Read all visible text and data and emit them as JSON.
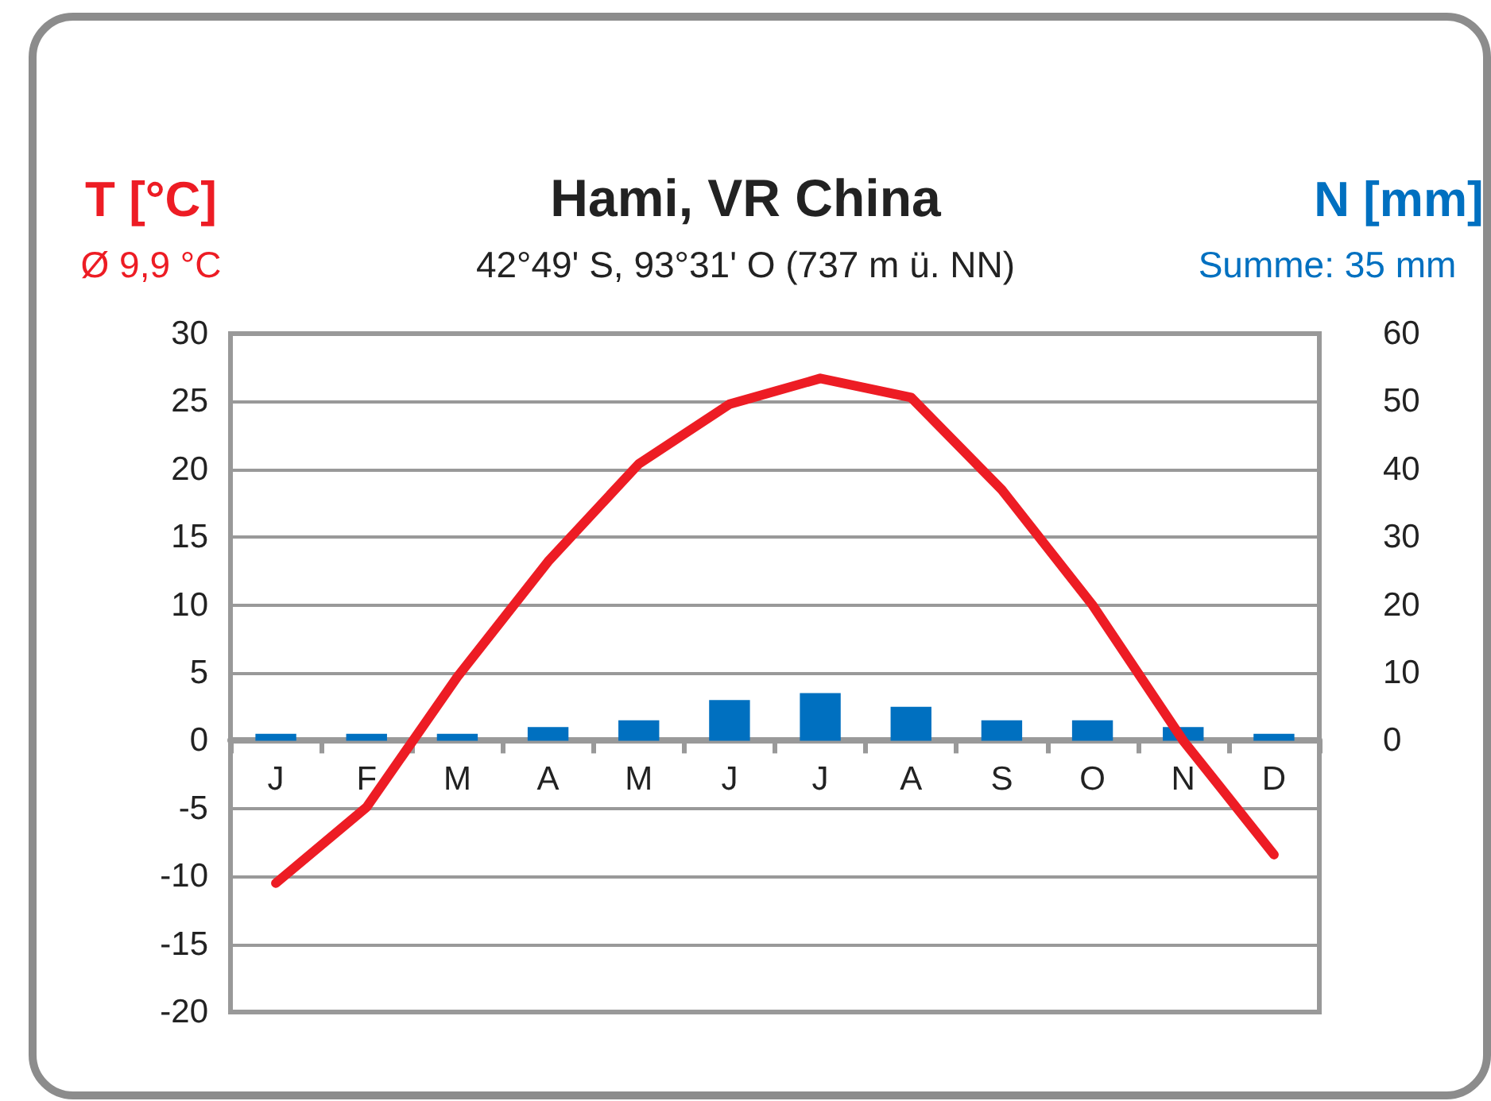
{
  "chart_data": {
    "type": "bar",
    "title": "Hami, VR China",
    "subtitle": "42°49' S, 93°31' O (737 m ü. NN)",
    "ylabel": "T [°C]",
    "y2label": "N [mm]",
    "annotations": [
      "Ø 9,9 °C",
      "Summe: 35 mm"
    ],
    "categories": [
      "J",
      "F",
      "M",
      "A",
      "M",
      "J",
      "J",
      "A",
      "S",
      "O",
      "N",
      "D"
    ],
    "series": [
      {
        "axis": "y2",
        "color": "#0070c0",
        "values": [
          1,
          1,
          1,
          2,
          3,
          6,
          7,
          5,
          3,
          3,
          2,
          1
        ]
      },
      {
        "type": "line",
        "axis": "y",
        "color": "#ed1c24",
        "values": [
          -10.5,
          -4.9,
          4.7,
          13.2,
          20.4,
          24.8,
          26.7,
          25.3,
          18.5,
          10.0,
          0.0,
          -8.4
        ]
      }
    ],
    "ylim": [
      -20,
      30
    ],
    "yticks": [
      -20,
      -15,
      -10,
      -5,
      0,
      5,
      10,
      15,
      20,
      25,
      30
    ],
    "y2lim": [
      -40,
      60
    ],
    "y2ticks": [
      0,
      10,
      20,
      30,
      40,
      50,
      60
    ],
    "grid": "y",
    "marker": "none",
    "line_style": "solid"
  }
}
